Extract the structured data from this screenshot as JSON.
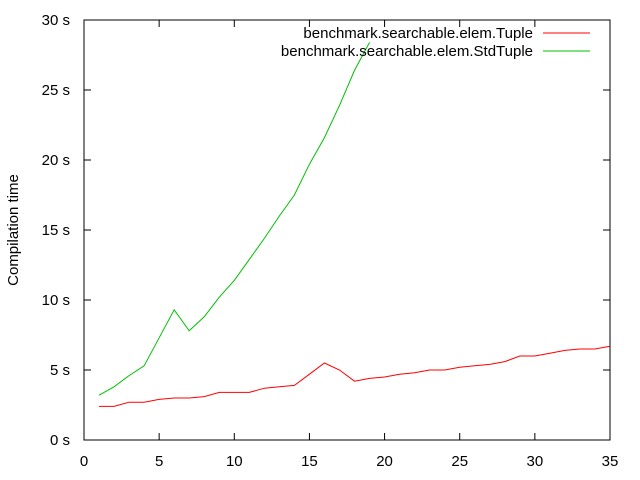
{
  "chart_data": {
    "type": "line",
    "title": "",
    "xlabel": "",
    "ylabel": "Compilation time",
    "xlim": [
      0,
      35
    ],
    "ylim": [
      0,
      30
    ],
    "x_ticks": [
      0,
      5,
      10,
      15,
      20,
      25,
      30,
      35
    ],
    "x_tick_labels": [
      "0",
      "5",
      "10",
      "15",
      "20",
      "25",
      "30",
      "35"
    ],
    "y_ticks": [
      0,
      5,
      10,
      15,
      20,
      25,
      30
    ],
    "y_tick_labels": [
      "0 s",
      "5 s",
      "10 s",
      "15 s",
      "20 s",
      "25 s",
      "30 s"
    ],
    "grid": false,
    "legend_position": "top-right",
    "series": [
      {
        "name": "benchmark.searchable.elem.Tuple",
        "color": "#ff0000",
        "x": [
          1,
          2,
          3,
          4,
          5,
          6,
          7,
          8,
          9,
          10,
          11,
          12,
          13,
          14,
          15,
          16,
          17,
          18,
          19,
          20,
          21,
          22,
          23,
          24,
          25,
          26,
          27,
          28,
          29,
          30,
          31,
          32,
          33,
          34,
          35
        ],
        "y": [
          2.4,
          2.4,
          2.7,
          2.7,
          2.9,
          3.0,
          3.0,
          3.1,
          3.4,
          3.4,
          3.4,
          3.7,
          3.8,
          3.9,
          4.7,
          5.5,
          5.0,
          4.2,
          4.4,
          4.5,
          4.7,
          4.8,
          5.0,
          5.0,
          5.2,
          5.3,
          5.4,
          5.6,
          6.0,
          6.0,
          6.2,
          6.4,
          6.5,
          6.5,
          6.7
        ]
      },
      {
        "name": "benchmark.searchable.elem.StdTuple",
        "color": "#00c000",
        "x": [
          1,
          2,
          3,
          4,
          5,
          6,
          7,
          8,
          9,
          10,
          11,
          12,
          13,
          14,
          15,
          16,
          17,
          18,
          19
        ],
        "y": [
          3.2,
          3.8,
          4.6,
          5.3,
          7.3,
          9.3,
          7.8,
          8.8,
          10.2,
          11.4,
          12.9,
          14.4,
          16.0,
          17.5,
          19.7,
          21.6,
          23.9,
          26.4,
          28.4
        ]
      }
    ]
  }
}
